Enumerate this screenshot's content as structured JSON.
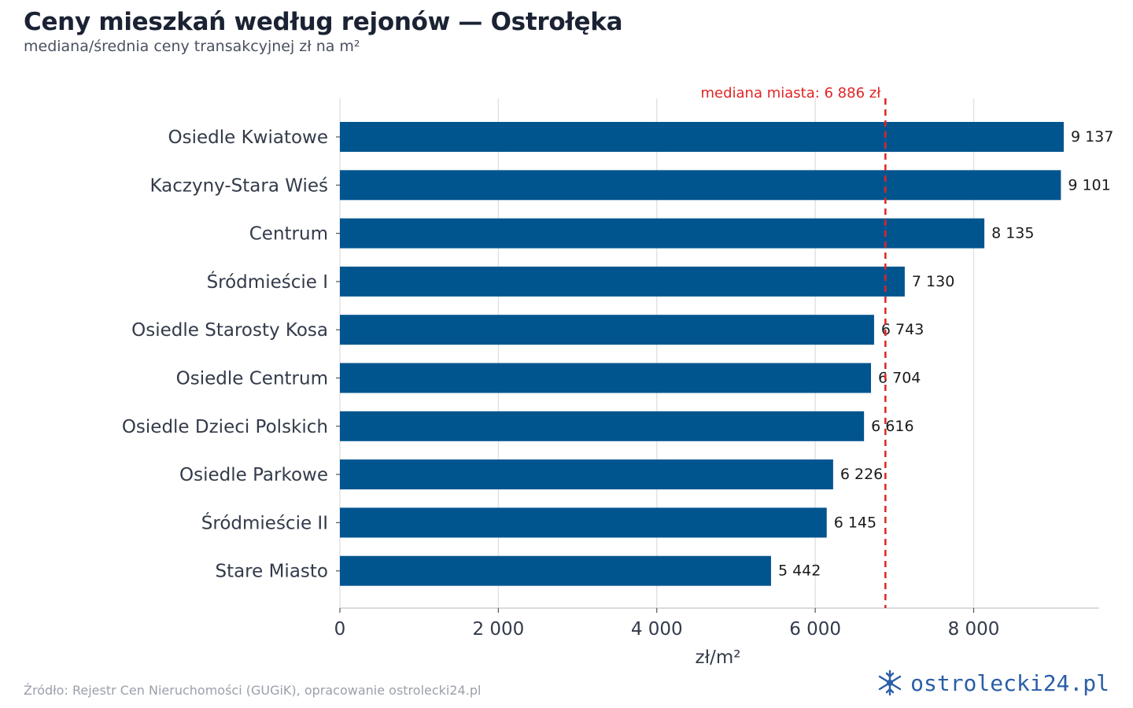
{
  "header": {
    "title": "Ceny mieszkań według rejonów — Ostrołęka",
    "subtitle": "mediana/średnia ceny transakcyjnej zł na m²"
  },
  "footer": {
    "source": "Źródło: Rejestr Cen Nieruchomości (GUGiK), opracowanie ostrolecki24.pl",
    "brand": "ostrolecki24.pl"
  },
  "colors": {
    "bar": "#00558f",
    "median_line": "#e02424",
    "grid": "#e3e3e3",
    "axis": "#cfcfcf"
  },
  "chart_data": {
    "type": "bar",
    "orientation": "horizontal",
    "categories": [
      "Osiedle Kwiatowe",
      "Kaczyny-Stara Wieś",
      "Centrum",
      "Śródmieście I",
      "Osiedle Starosty Kosa",
      "Osiedle Centrum",
      "Osiedle Dzieci Polskich",
      "Osiedle Parkowe",
      "Śródmieście II",
      "Stare Miasto"
    ],
    "values": [
      9137,
      9101,
      8135,
      7130,
      6743,
      6704,
      6616,
      6226,
      6145,
      5442
    ],
    "value_labels": [
      "9 137",
      "9 101",
      "8 135",
      "7 130",
      "6 743",
      "6 704",
      "6 616",
      "6 226",
      "6 145",
      "5 442"
    ],
    "xlabel": "zł/m²",
    "xlim": [
      0,
      9600
    ],
    "xticks": [
      0,
      2000,
      4000,
      6000,
      8000
    ],
    "xtick_labels": [
      "0",
      "2 000",
      "4 000",
      "6 000",
      "8 000"
    ],
    "grid": true,
    "reference_line": {
      "value": 6886,
      "label": "mediana miasta: 6 886 zł",
      "style": "dashed"
    }
  }
}
